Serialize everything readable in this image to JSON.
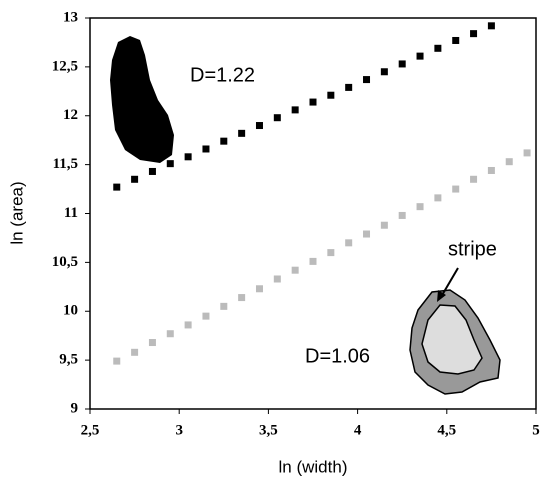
{
  "chart_data": {
    "type": "scatter",
    "x_label": "ln (width)",
    "y_label": "ln (area)",
    "xlim": [
      2.5,
      5
    ],
    "ylim": [
      9,
      13
    ],
    "xticks": [
      {
        "value": 2.5,
        "label": "2,5"
      },
      3,
      {
        "value": 3.5,
        "label": "3,5"
      },
      4,
      {
        "value": 4.5,
        "label": "4,5"
      },
      5
    ],
    "yticks": [
      9,
      {
        "value": 9.5,
        "label": "9,5"
      },
      10,
      {
        "value": 10.5,
        "label": "10,5"
      },
      11,
      {
        "value": 11.5,
        "label": "11,5"
      },
      12,
      {
        "value": 12.5,
        "label": "12,5"
      },
      13
    ],
    "series": [
      {
        "color": "#000000",
        "x": [
          2.65,
          2.75,
          2.85,
          2.95,
          3.05,
          3.15,
          3.25,
          3.35,
          3.45,
          3.55,
          3.65,
          3.75,
          3.85,
          3.95,
          4.05,
          4.15,
          4.25,
          4.35,
          4.45,
          4.55,
          4.65,
          4.75
        ],
        "values": [
          11.27,
          11.35,
          11.43,
          11.51,
          11.58,
          11.66,
          11.74,
          11.82,
          11.9,
          11.98,
          12.06,
          12.14,
          12.21,
          12.29,
          12.37,
          12.45,
          12.53,
          12.61,
          12.69,
          12.77,
          12.84,
          12.92
        ]
      },
      {
        "color": "#bbbbbb",
        "x": [
          2.65,
          2.75,
          2.85,
          2.95,
          3.05,
          3.15,
          3.25,
          3.35,
          3.45,
          3.55,
          3.65,
          3.75,
          3.85,
          3.95,
          4.05,
          4.15,
          4.25,
          4.35,
          4.45,
          4.55,
          4.65,
          4.75,
          4.85,
          4.95
        ],
        "values": [
          9.49,
          9.58,
          9.68,
          9.77,
          9.86,
          9.95,
          10.05,
          10.14,
          10.23,
          10.33,
          10.42,
          10.51,
          10.6,
          10.7,
          10.79,
          10.88,
          10.98,
          11.07,
          11.16,
          11.25,
          11.35,
          11.44,
          11.53,
          11.62
        ]
      }
    ],
    "annotations": [
      "D=1.22",
      "D=1.06",
      "stripe"
    ]
  }
}
